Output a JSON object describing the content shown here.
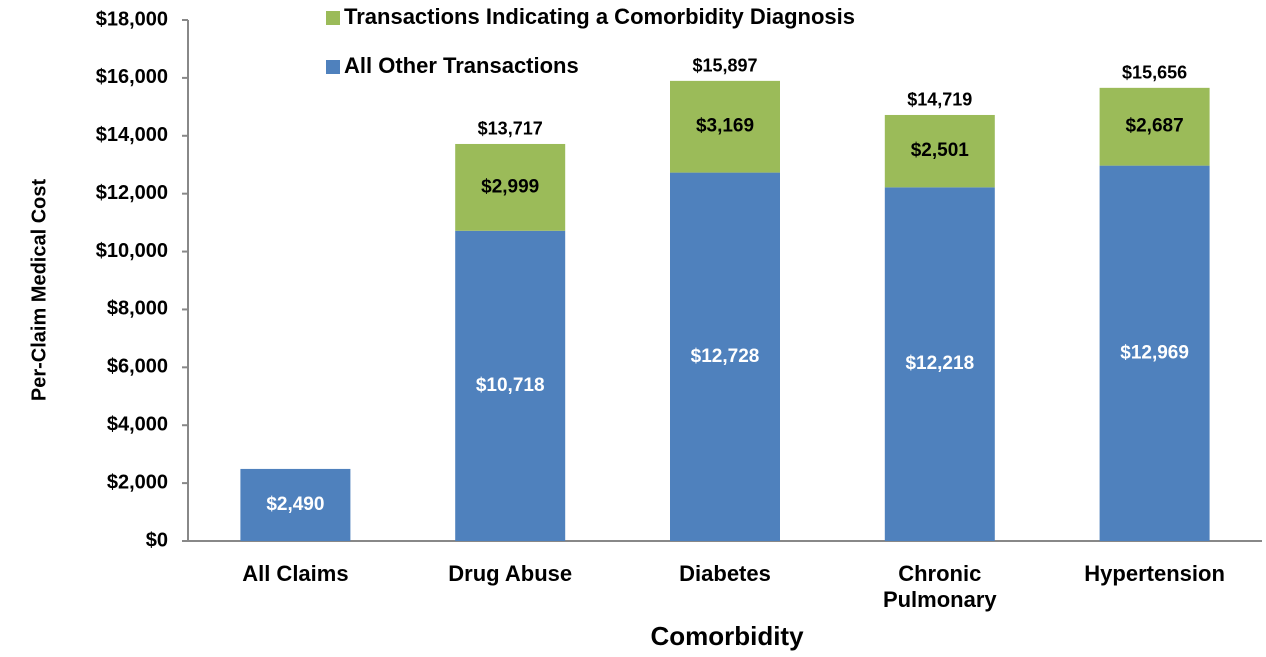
{
  "chart_data": {
    "type": "stacked_bar",
    "x_label": "Comorbidity",
    "y_label": "Per-Claim Medical Cost",
    "categories": [
      "All Claims",
      "Drug Abuse",
      "Diabetes",
      "Chronic Pulmonary",
      "Hypertension"
    ],
    "series": [
      {
        "name": "All Other Transactions",
        "color": "#4f81bd",
        "values": [
          2490,
          10718,
          12728,
          12218,
          12969
        ],
        "value_labels": [
          "$2,490",
          "$10,718",
          "$12,728",
          "$12,218",
          "$12,969"
        ]
      },
      {
        "name": "Transactions Indicating a Comorbidity Diagnosis",
        "color": "#9bbb59",
        "values": [
          null,
          2999,
          3169,
          2501,
          2687
        ],
        "value_labels": [
          null,
          "$2,999",
          "$3,169",
          "$2,501",
          "$2,687"
        ]
      }
    ],
    "totals": {
      "values": [
        null,
        13717,
        15897,
        14719,
        15656
      ],
      "value_labels": [
        null,
        "$13,717",
        "$15,897",
        "$14,719",
        "$15,656"
      ]
    },
    "ylim": [
      0,
      18000
    ],
    "yticks": [
      {
        "value": 0,
        "label": "$0"
      },
      {
        "value": 2000,
        "label": "$2,000"
      },
      {
        "value": 4000,
        "label": "$4,000"
      },
      {
        "value": 6000,
        "label": "$6,000"
      },
      {
        "value": 8000,
        "label": "$8,000"
      },
      {
        "value": 10000,
        "label": "$10,000"
      },
      {
        "value": 12000,
        "label": "$12,000"
      },
      {
        "value": 14000,
        "label": "$14,000"
      },
      {
        "value": 16000,
        "label": "$16,000"
      },
      {
        "value": 18000,
        "label": "$18,000"
      }
    ],
    "grid": false
  }
}
